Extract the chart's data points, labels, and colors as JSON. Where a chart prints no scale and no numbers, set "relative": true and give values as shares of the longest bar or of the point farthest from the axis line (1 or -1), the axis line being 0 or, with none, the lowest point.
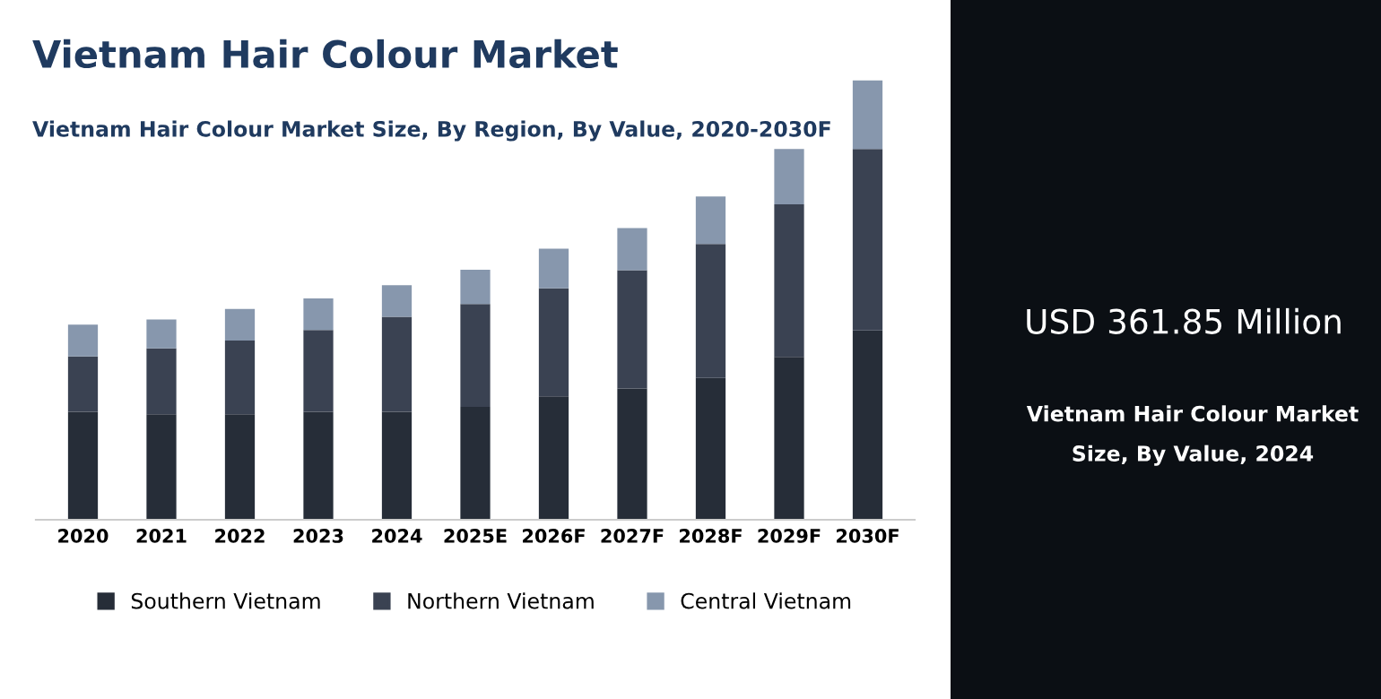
{
  "chart_data": {
    "type": "bar",
    "title": "Vietnam Hair Colour Market",
    "subtitle": "Vietnam Hair Colour Market Size, By Region, By Value, 2020-2030F",
    "categories": [
      "2020",
      "2021",
      "2022",
      "2023",
      "2024",
      "2025E",
      "2026F",
      "2027F",
      "2028F",
      "2029F",
      "2030F"
    ],
    "stacked": true,
    "relative": true,
    "legend": "bottom",
    "grid": false,
    "series": [
      {
        "name": "Southern Vietnam",
        "color": "#262d38",
        "values": [
          0.246,
          0.24,
          0.24,
          0.246,
          0.246,
          0.257,
          0.281,
          0.299,
          0.323,
          0.371,
          0.431
        ]
      },
      {
        "name": "Northern Vietnam",
        "color": "#3a4252",
        "values": [
          0.126,
          0.15,
          0.168,
          0.186,
          0.216,
          0.234,
          0.246,
          0.269,
          0.305,
          0.347,
          0.413
        ]
      },
      {
        "name": "Central Vietnam",
        "color": "#8797ad",
        "values": [
          0.072,
          0.066,
          0.072,
          0.072,
          0.072,
          0.078,
          0.09,
          0.096,
          0.108,
          0.126,
          0.156
        ]
      }
    ],
    "annotations": [
      "USD 361.85 Million",
      "Vietnam Hair Colour Market Size, By Value, 2024"
    ]
  }
}
